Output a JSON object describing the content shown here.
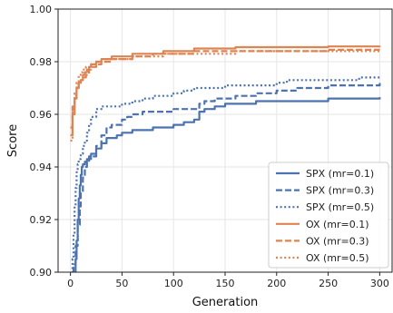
{
  "chart_data": {
    "type": "line",
    "title": "",
    "xlabel": "Generation",
    "ylabel": "Score",
    "xlim": [
      -12,
      312
    ],
    "ylim": [
      0.9,
      1.0
    ],
    "xticks": [
      0,
      50,
      100,
      150,
      200,
      250,
      300
    ],
    "yticks": [
      0.9,
      0.92,
      0.94,
      0.96,
      0.98,
      1.0
    ],
    "xtick_labels": [
      "0",
      "50",
      "100",
      "150",
      "200",
      "250",
      "300"
    ],
    "ytick_labels": [
      "0.90",
      "0.92",
      "0.94",
      "0.96",
      "0.98",
      "1.00"
    ],
    "grid": true,
    "legend_position": "lower-right",
    "series": [
      {
        "name": "SPX (mr=0.1)",
        "color": "#4c72b0",
        "dash": "solid",
        "x": [
          4,
          5,
          6,
          7,
          8,
          9,
          10,
          11,
          12,
          14,
          16,
          18,
          20,
          25,
          30,
          35,
          40,
          45,
          50,
          60,
          70,
          80,
          90,
          100,
          110,
          120,
          125,
          130,
          140,
          150,
          160,
          180,
          200,
          250,
          280,
          300
        ],
        "y": [
          0.9,
          0.905,
          0.912,
          0.92,
          0.928,
          0.933,
          0.937,
          0.94,
          0.941,
          0.942,
          0.943,
          0.944,
          0.945,
          0.947,
          0.949,
          0.951,
          0.951,
          0.952,
          0.953,
          0.954,
          0.954,
          0.955,
          0.955,
          0.956,
          0.957,
          0.958,
          0.961,
          0.962,
          0.963,
          0.964,
          0.964,
          0.965,
          0.965,
          0.966,
          0.966,
          0.9665
        ]
      },
      {
        "name": "SPX (mr=0.3)",
        "color": "#4c72b0",
        "dash": "dashed",
        "x": [
          2,
          3,
          5,
          7,
          9,
          10,
          12,
          14,
          16,
          18,
          20,
          25,
          30,
          35,
          40,
          45,
          50,
          55,
          60,
          70,
          80,
          90,
          100,
          110,
          120,
          125,
          130,
          140,
          150,
          160,
          170,
          180,
          200,
          220,
          240,
          250,
          270,
          300
        ],
        "y": [
          0.9,
          0.903,
          0.91,
          0.918,
          0.925,
          0.93,
          0.936,
          0.94,
          0.942,
          0.943,
          0.944,
          0.948,
          0.952,
          0.955,
          0.956,
          0.956,
          0.958,
          0.959,
          0.96,
          0.961,
          0.961,
          0.961,
          0.962,
          0.962,
          0.962,
          0.964,
          0.965,
          0.966,
          0.966,
          0.967,
          0.967,
          0.968,
          0.969,
          0.97,
          0.97,
          0.971,
          0.971,
          0.972
        ]
      },
      {
        "name": "SPX (mr=0.5)",
        "color": "#4c72b0",
        "dash": "dotted",
        "x": [
          1,
          2,
          3,
          4,
          5,
          6,
          7,
          8,
          10,
          12,
          14,
          16,
          18,
          20,
          25,
          30,
          40,
          50,
          60,
          70,
          80,
          90,
          100,
          110,
          120,
          130,
          140,
          150,
          180,
          200,
          210,
          250,
          280,
          300
        ],
        "y": [
          0.9,
          0.905,
          0.915,
          0.925,
          0.932,
          0.938,
          0.941,
          0.943,
          0.945,
          0.948,
          0.95,
          0.953,
          0.956,
          0.959,
          0.962,
          0.963,
          0.963,
          0.964,
          0.965,
          0.966,
          0.967,
          0.967,
          0.968,
          0.969,
          0.97,
          0.97,
          0.97,
          0.971,
          0.971,
          0.972,
          0.973,
          0.973,
          0.974,
          0.974
        ]
      },
      {
        "name": "OX (mr=0.1)",
        "color": "#dd8452",
        "dash": "solid",
        "x": [
          0,
          2,
          4,
          6,
          8,
          10,
          12,
          14,
          16,
          18,
          20,
          25,
          30,
          35,
          40,
          50,
          60,
          70,
          80,
          90,
          100,
          120,
          140,
          160,
          200,
          250,
          300
        ],
        "y": [
          0.952,
          0.96,
          0.966,
          0.97,
          0.972,
          0.973,
          0.975,
          0.976,
          0.977,
          0.978,
          0.979,
          0.98,
          0.981,
          0.981,
          0.982,
          0.982,
          0.983,
          0.983,
          0.983,
          0.984,
          0.984,
          0.985,
          0.985,
          0.9855,
          0.9855,
          0.9858,
          0.986
        ]
      },
      {
        "name": "OX (mr=0.3)",
        "color": "#dd8452",
        "dash": "dashed",
        "x": [
          0,
          2,
          4,
          6,
          8,
          10,
          12,
          15,
          18,
          20,
          25,
          30,
          35,
          40,
          50,
          60,
          70,
          80,
          90,
          100,
          120,
          140,
          160,
          200,
          250,
          300
        ],
        "y": [
          0.955,
          0.963,
          0.967,
          0.97,
          0.972,
          0.973,
          0.974,
          0.975,
          0.977,
          0.978,
          0.979,
          0.98,
          0.98,
          0.981,
          0.981,
          0.982,
          0.982,
          0.983,
          0.983,
          0.983,
          0.984,
          0.984,
          0.984,
          0.984,
          0.9845,
          0.9845
        ]
      },
      {
        "name": "OX (mr=0.5)",
        "color": "#dd8452",
        "dash": "dotted",
        "x": [
          0,
          2,
          4,
          6,
          8,
          10,
          12,
          15,
          20,
          25,
          30,
          35,
          40,
          50,
          60,
          70,
          80,
          90,
          100,
          120,
          140,
          160,
          200,
          250,
          300
        ],
        "y": [
          0.95,
          0.962,
          0.968,
          0.972,
          0.975,
          0.976,
          0.977,
          0.978,
          0.979,
          0.98,
          0.98,
          0.981,
          0.981,
          0.981,
          0.982,
          0.982,
          0.982,
          0.983,
          0.983,
          0.983,
          0.983,
          0.984,
          0.984,
          0.984,
          0.984
        ]
      }
    ]
  }
}
